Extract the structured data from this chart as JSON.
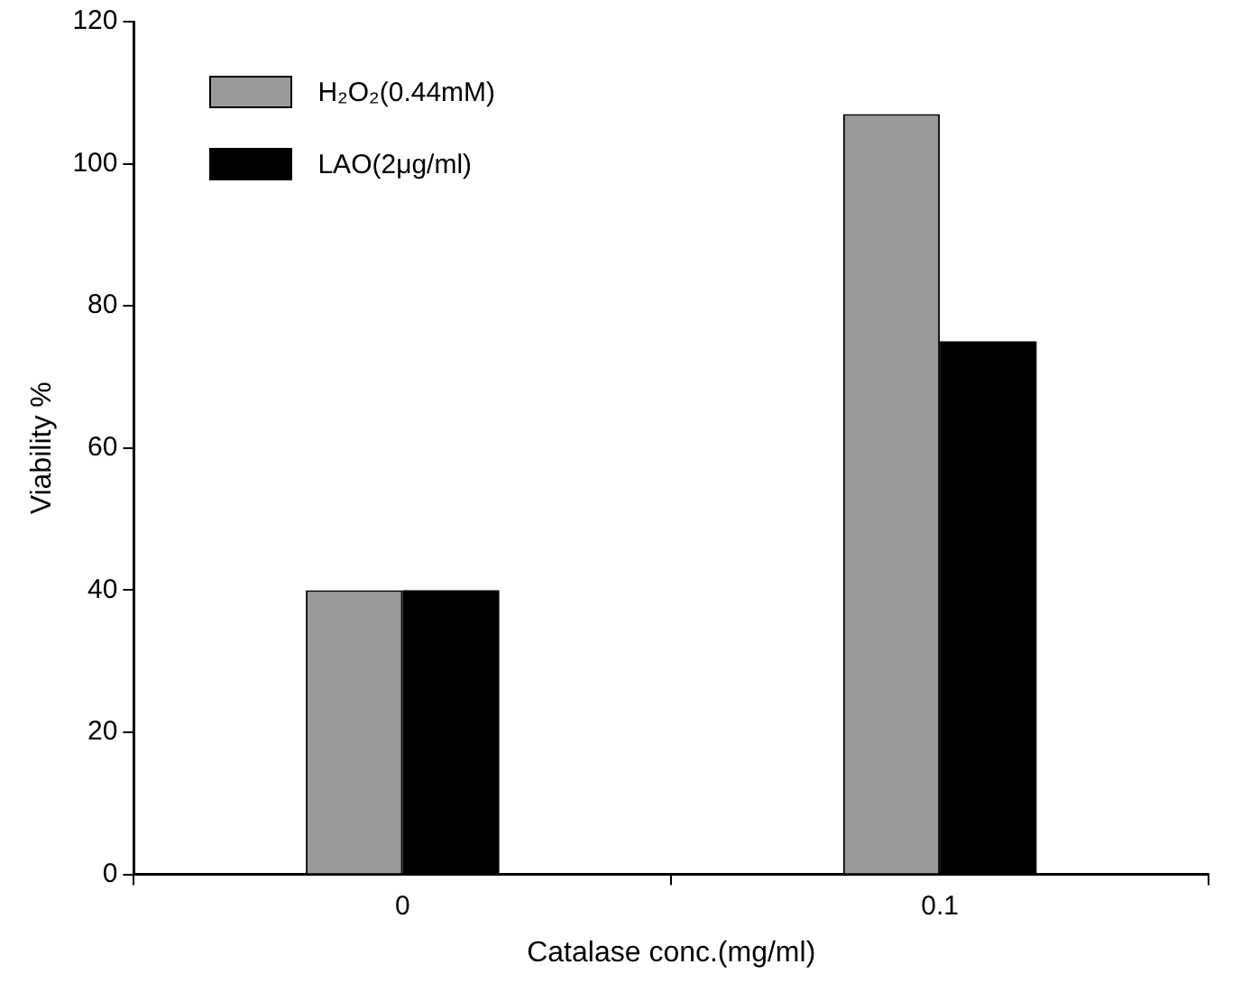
{
  "chart_data": {
    "type": "bar",
    "xlabel": "Catalase conc.(mg/ml)",
    "ylabel": "Viability %",
    "categories": [
      "0",
      "0.1"
    ],
    "series": [
      {
        "name": "H₂O₂(0.44mM)",
        "color": "#9a9a9a",
        "values": [
          40,
          107
        ]
      },
      {
        "name": "LAO(2μg/ml)",
        "color": "#000000",
        "values": [
          40,
          75
        ]
      }
    ],
    "ylim": [
      0,
      120
    ],
    "yticks": [
      0,
      20,
      40,
      60,
      80,
      100,
      120
    ],
    "grid": false,
    "legend": "top left"
  }
}
